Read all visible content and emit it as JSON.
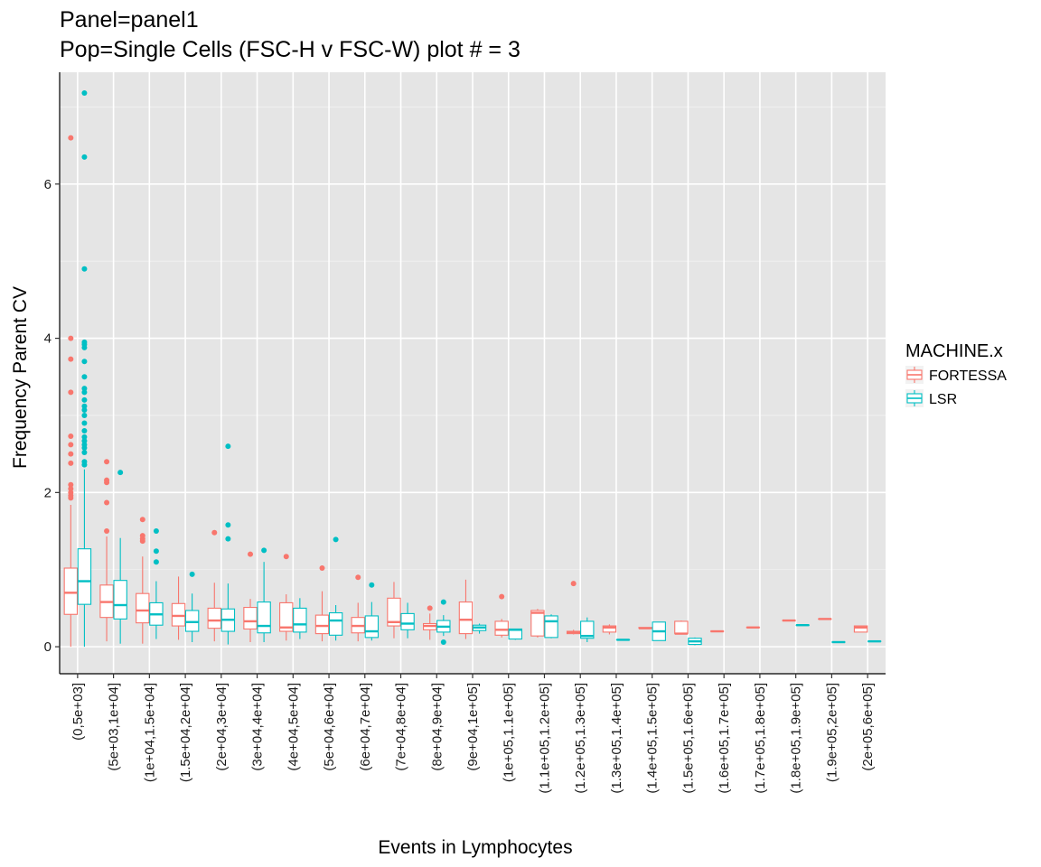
{
  "chart_data": {
    "type": "box",
    "title": "Panel=panel1",
    "subtitle": "Pop=Single Cells (FSC-H v FSC-W) plot # = 3",
    "xlabel": "Events in Lymphocytes",
    "ylabel": "Frequency Parent CV",
    "ylim": [
      -0.35,
      7.45
    ],
    "yticks": [
      0,
      2,
      4,
      6
    ],
    "grid": true,
    "legend": {
      "title": "MACHINE.x",
      "position": "right",
      "entries": [
        {
          "name": "FORTESSA",
          "color": "#F8766D"
        },
        {
          "name": "LSR",
          "color": "#00BFC4"
        }
      ]
    },
    "categories": [
      "(0,5e+03]",
      "(5e+03,1e+04]",
      "(1e+04,1.5e+04]",
      "(1.5e+04,2e+04]",
      "(2e+04,3e+04]",
      "(3e+04,4e+04]",
      "(4e+04,5e+04]",
      "(5e+04,6e+04]",
      "(6e+04,7e+04]",
      "(7e+04,8e+04]",
      "(8e+04,9e+04]",
      "(9e+04,1e+05]",
      "(1e+05,1.1e+05]",
      "(1.1e+05,1.2e+05]",
      "(1.2e+05,1.3e+05]",
      "(1.3e+05,1.4e+05]",
      "(1.4e+05,1.5e+05]",
      "(1.5e+05,1.6e+05]",
      "(1.6e+05,1.7e+05]",
      "(1.7e+05,1.8e+05]",
      "(1.8e+05,1.9e+05]",
      "(1.9e+05,2e+05]",
      "(2e+05,6e+05]"
    ],
    "series": [
      {
        "name": "FORTESSA",
        "color": "#F8766D",
        "boxes": [
          {
            "cat": 0,
            "min": 0.0,
            "q1": 0.42,
            "median": 0.7,
            "q3": 1.02,
            "max": 1.84,
            "outliers": [
              1.93,
              1.96,
              2.0,
              2.05,
              2.1,
              2.38,
              2.5,
              2.62,
              2.73,
              3.3,
              3.73,
              4.0,
              6.6
            ]
          },
          {
            "cat": 1,
            "min": 0.07,
            "q1": 0.38,
            "median": 0.58,
            "q3": 0.8,
            "max": 1.43,
            "outliers": [
              1.5,
              1.87,
              2.13,
              2.16,
              2.4
            ]
          },
          {
            "cat": 2,
            "min": 0.04,
            "q1": 0.31,
            "median": 0.47,
            "q3": 0.69,
            "max": 1.17,
            "outliers": [
              1.37,
              1.4,
              1.44,
              1.65
            ]
          },
          {
            "cat": 3,
            "min": 0.09,
            "q1": 0.27,
            "median": 0.4,
            "q3": 0.56,
            "max": 0.91,
            "outliers": []
          },
          {
            "cat": 4,
            "min": 0.07,
            "q1": 0.24,
            "median": 0.34,
            "q3": 0.5,
            "max": 0.83,
            "outliers": [
              1.48
            ]
          },
          {
            "cat": 5,
            "min": 0.06,
            "q1": 0.23,
            "median": 0.33,
            "q3": 0.51,
            "max": 0.62,
            "outliers": [
              1.2
            ]
          },
          {
            "cat": 6,
            "min": 0.08,
            "q1": 0.2,
            "median": 0.25,
            "q3": 0.57,
            "max": 0.68,
            "outliers": [
              1.17
            ]
          },
          {
            "cat": 7,
            "min": 0.07,
            "q1": 0.17,
            "median": 0.27,
            "q3": 0.41,
            "max": 0.72,
            "outliers": [
              1.02
            ]
          },
          {
            "cat": 8,
            "min": 0.07,
            "q1": 0.18,
            "median": 0.27,
            "q3": 0.38,
            "max": 0.57,
            "outliers": [
              0.9
            ]
          },
          {
            "cat": 9,
            "min": 0.11,
            "q1": 0.27,
            "median": 0.32,
            "q3": 0.63,
            "max": 0.84,
            "outliers": []
          },
          {
            "cat": 10,
            "min": 0.09,
            "q1": 0.22,
            "median": 0.27,
            "q3": 0.3,
            "max": 0.43,
            "outliers": [
              0.5
            ]
          },
          {
            "cat": 11,
            "min": 0.1,
            "q1": 0.17,
            "median": 0.35,
            "q3": 0.58,
            "max": 0.87,
            "outliers": []
          },
          {
            "cat": 12,
            "min": 0.12,
            "q1": 0.15,
            "median": 0.22,
            "q3": 0.33,
            "max": 0.36,
            "outliers": [
              0.65
            ]
          },
          {
            "cat": 13,
            "min": 0.12,
            "q1": 0.14,
            "median": 0.44,
            "q3": 0.47,
            "max": 0.49,
            "outliers": []
          },
          {
            "cat": 14,
            "min": 0.16,
            "q1": 0.17,
            "median": 0.19,
            "q3": 0.2,
            "max": 0.22,
            "outliers": [
              0.82
            ]
          },
          {
            "cat": 15,
            "min": 0.16,
            "q1": 0.19,
            "median": 0.25,
            "q3": 0.27,
            "max": 0.29,
            "outliers": []
          },
          {
            "cat": 16,
            "min": 0.23,
            "q1": 0.24,
            "median": 0.24,
            "q3": 0.25,
            "max": 0.25,
            "outliers": []
          },
          {
            "cat": 17,
            "min": 0.16,
            "q1": 0.17,
            "median": 0.17,
            "q3": 0.33,
            "max": 0.34,
            "outliers": []
          },
          {
            "cat": 18,
            "min": 0.2,
            "q1": 0.2,
            "median": 0.2,
            "q3": 0.2,
            "max": 0.2,
            "outliers": []
          },
          {
            "cat": 19,
            "min": 0.25,
            "q1": 0.25,
            "median": 0.25,
            "q3": 0.25,
            "max": 0.25,
            "outliers": []
          },
          {
            "cat": 20,
            "min": 0.34,
            "q1": 0.34,
            "median": 0.34,
            "q3": 0.34,
            "max": 0.34,
            "outliers": []
          },
          {
            "cat": 21,
            "min": 0.36,
            "q1": 0.36,
            "median": 0.36,
            "q3": 0.36,
            "max": 0.36,
            "outliers": []
          },
          {
            "cat": 22,
            "min": 0.19,
            "q1": 0.19,
            "median": 0.25,
            "q3": 0.27,
            "max": 0.27,
            "outliers": []
          }
        ]
      },
      {
        "name": "LSR",
        "color": "#00BFC4",
        "boxes": [
          {
            "cat": 0,
            "min": 0.0,
            "q1": 0.55,
            "median": 0.85,
            "q3": 1.27,
            "max": 2.3,
            "outliers": [
              2.36,
              2.4,
              2.52,
              2.58,
              2.62,
              2.67,
              2.72,
              2.8,
              2.9,
              3.0,
              3.07,
              3.12,
              3.2,
              3.3,
              3.35,
              3.5,
              3.7,
              3.88,
              3.92,
              3.95,
              4.9,
              6.35,
              7.18
            ]
          },
          {
            "cat": 1,
            "min": 0.04,
            "q1": 0.36,
            "median": 0.54,
            "q3": 0.86,
            "max": 1.41,
            "outliers": [
              2.26
            ]
          },
          {
            "cat": 2,
            "min": 0.1,
            "q1": 0.28,
            "median": 0.42,
            "q3": 0.57,
            "max": 0.85,
            "outliers": [
              1.1,
              1.24,
              1.5
            ]
          },
          {
            "cat": 3,
            "min": 0.06,
            "q1": 0.2,
            "median": 0.32,
            "q3": 0.47,
            "max": 0.69,
            "outliers": [
              0.94
            ]
          },
          {
            "cat": 4,
            "min": 0.03,
            "q1": 0.2,
            "median": 0.35,
            "q3": 0.49,
            "max": 0.82,
            "outliers": [
              1.4,
              1.58,
              2.6
            ]
          },
          {
            "cat": 5,
            "min": 0.06,
            "q1": 0.18,
            "median": 0.27,
            "q3": 0.58,
            "max": 1.1,
            "outliers": [
              1.25
            ]
          },
          {
            "cat": 6,
            "min": 0.1,
            "q1": 0.19,
            "median": 0.29,
            "q3": 0.5,
            "max": 0.63,
            "outliers": []
          },
          {
            "cat": 7,
            "min": 0.08,
            "q1": 0.15,
            "median": 0.34,
            "q3": 0.44,
            "max": 0.54,
            "outliers": [
              1.39
            ]
          },
          {
            "cat": 8,
            "min": 0.08,
            "q1": 0.12,
            "median": 0.2,
            "q3": 0.4,
            "max": 0.58,
            "outliers": [
              0.8
            ]
          },
          {
            "cat": 9,
            "min": 0.11,
            "q1": 0.22,
            "median": 0.3,
            "q3": 0.43,
            "max": 0.57,
            "outliers": []
          },
          {
            "cat": 10,
            "min": 0.14,
            "q1": 0.19,
            "median": 0.26,
            "q3": 0.34,
            "max": 0.41,
            "outliers": [
              0.06,
              0.58
            ]
          },
          {
            "cat": 11,
            "min": 0.17,
            "q1": 0.21,
            "median": 0.25,
            "q3": 0.28,
            "max": 0.3,
            "outliers": []
          },
          {
            "cat": 12,
            "min": 0.09,
            "q1": 0.1,
            "median": 0.22,
            "q3": 0.23,
            "max": 0.23,
            "outliers": []
          },
          {
            "cat": 13,
            "min": 0.11,
            "q1": 0.12,
            "median": 0.33,
            "q3": 0.4,
            "max": 0.42,
            "outliers": []
          },
          {
            "cat": 14,
            "min": 0.06,
            "q1": 0.11,
            "median": 0.14,
            "q3": 0.33,
            "max": 0.38,
            "outliers": []
          },
          {
            "cat": 15,
            "min": 0.09,
            "q1": 0.09,
            "median": 0.09,
            "q3": 0.09,
            "max": 0.09,
            "outliers": []
          },
          {
            "cat": 16,
            "min": 0.08,
            "q1": 0.08,
            "median": 0.2,
            "q3": 0.32,
            "max": 0.32,
            "outliers": []
          },
          {
            "cat": 17,
            "min": 0.02,
            "q1": 0.03,
            "median": 0.07,
            "q3": 0.11,
            "max": 0.12,
            "outliers": []
          },
          {
            "cat": 20,
            "min": 0.28,
            "q1": 0.28,
            "median": 0.28,
            "q3": 0.28,
            "max": 0.28,
            "outliers": []
          },
          {
            "cat": 21,
            "min": 0.06,
            "q1": 0.06,
            "median": 0.06,
            "q3": 0.06,
            "max": 0.06,
            "outliers": []
          },
          {
            "cat": 22,
            "min": 0.07,
            "q1": 0.07,
            "median": 0.07,
            "q3": 0.07,
            "max": 0.07,
            "outliers": []
          }
        ]
      }
    ]
  }
}
